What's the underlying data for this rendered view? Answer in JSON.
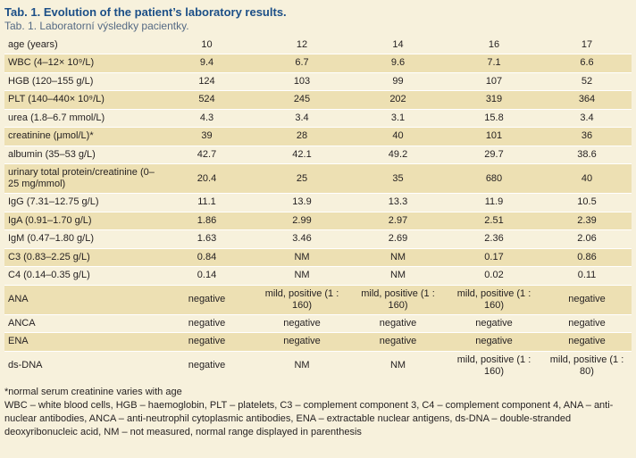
{
  "title": "Tab. 1. Evolution of the patient’s laboratory results.",
  "subtitle": "Tab. 1. Laboratorní výsledky pacientky.",
  "rows": [
    {
      "label": "age (years)",
      "values": [
        "10",
        "12",
        "14",
        "16",
        "17"
      ]
    },
    {
      "label": "WBC (4–12× 10⁹/L)",
      "values": [
        "9.4",
        "6.7",
        "9.6",
        "7.1",
        "6.6"
      ]
    },
    {
      "label": "HGB (120–155 g/L)",
      "values": [
        "124",
        "103",
        "99",
        "107",
        "52"
      ]
    },
    {
      "label": "PLT (140–440× 10⁹/L)",
      "values": [
        "524",
        "245",
        "202",
        "319",
        "364"
      ]
    },
    {
      "label": "urea (1.8–6.7 mmol/L)",
      "values": [
        "4.3",
        "3.4",
        "3.1",
        "15.8",
        "3.4"
      ]
    },
    {
      "label": "creatinine (μmol/L)*",
      "values": [
        "39",
        "28",
        "40",
        "101",
        "36"
      ]
    },
    {
      "label": "albumin (35–53 g/L)",
      "values": [
        "42.7",
        "42.1",
        "49.2",
        "29.7",
        "38.6"
      ]
    },
    {
      "label": "urinary total protein/creatinine (0–25 mg/mmol)",
      "values": [
        "20.4",
        "25",
        "35",
        "680",
        "40"
      ]
    },
    {
      "label": "IgG (7.31–12.75 g/L)",
      "values": [
        "11.1",
        "13.9",
        "13.3",
        "11.9",
        "10.5"
      ]
    },
    {
      "label": "IgA (0.91–1.70 g/L)",
      "values": [
        "1.86",
        "2.99",
        "2.97",
        "2.51",
        "2.39"
      ]
    },
    {
      "label": "IgM (0.47–1.80 g/L)",
      "values": [
        "1.63",
        "3.46",
        "2.69",
        "2.36",
        "2.06"
      ]
    },
    {
      "label": "C3 (0.83–2.25 g/L)",
      "values": [
        "0.84",
        "NM",
        "NM",
        "0.17",
        "0.86"
      ]
    },
    {
      "label": "C4 (0.14–0.35 g/L)",
      "values": [
        "0.14",
        "NM",
        "NM",
        "0.02",
        "0.11"
      ]
    },
    {
      "label": "ANA",
      "values": [
        "negative",
        "mild, positive (1 : 160)",
        "mild, positive (1 : 160)",
        "mild, positive (1 : 160)",
        "negative"
      ]
    },
    {
      "label": "ANCA",
      "values": [
        "negative",
        "negative",
        "negative",
        "negative",
        "negative"
      ]
    },
    {
      "label": "ENA",
      "values": [
        "negative",
        "negative",
        "negative",
        "negative",
        "negative"
      ]
    },
    {
      "label": "ds-DNA",
      "values": [
        "negative",
        "NM",
        "NM",
        "mild, positive (1 : 160)",
        "mild, positive (1 : 80)"
      ]
    }
  ],
  "notes": {
    "line1": "*normal serum creatinine varies with age",
    "line2": "WBC – white blood cells, HGB – haemoglobin, PLT – platelets, C3 – complement component 3, C4 – complement component 4, ANA – anti-nuclear antibodies, ANCA – anti-neutrophil cytoplasmic antibodies, ENA – extractable nuclear antigens, ds-DNA – double-stranded deoxyribonucleic acid, NM – not measured, normal range displayed in parenthesis"
  },
  "colors": {
    "title": "#1c4f87",
    "subtitle": "#556a84",
    "background": "#f7f1dc",
    "shade": "#ede0b3"
  }
}
